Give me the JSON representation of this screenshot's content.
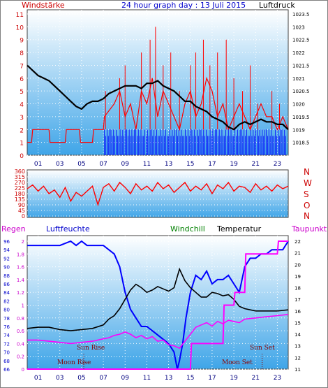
{
  "header": {
    "left_label": "Windstärke",
    "title": "24 hour graph day : 13 Juli 2015",
    "right_label": "Luftdruck"
  },
  "colors": {
    "outer_border": "#404040",
    "frame_bg": "#5eb6ea",
    "wind_red": "#ff0000",
    "wind_blue": "#0000ff",
    "pressure_black": "#000000",
    "humidity_blue": "#0000ff",
    "rain_magenta": "#ff00ff",
    "windchill_green": "#008000",
    "dewpoint_magenta": "#ff00ff",
    "axis_red": "#cc0000",
    "axis_blue": "#0000cc",
    "dark_red_text": "#8b0000"
  },
  "chart_data": [
    {
      "type": "line",
      "title": "24 hour graph day : 13 Juli 2015",
      "ylabel": "Windstärke",
      "y2label": "Luftdruck",
      "x_ticks": [
        "01",
        "03",
        "05",
        "07",
        "09",
        "11",
        "13",
        "15",
        "17",
        "19",
        "21",
        "23"
      ],
      "y_ticks": [
        "0",
        "1",
        "2",
        "3",
        "4",
        "5",
        "6",
        "7",
        "8",
        "9",
        "10",
        "11"
      ],
      "ylim": [
        0,
        11
      ],
      "y2_ticks": [
        "1018.5",
        "1019",
        "1019.5",
        "1020",
        "1020.5",
        "1021",
        "1021.5",
        "1022",
        "1022.5",
        "1023",
        "1023.5"
      ],
      "y2lim": [
        1018,
        1023.5
      ],
      "series": [
        {
          "role": "pressure",
          "color": "#000000",
          "x": [
            0,
            0.5,
            1,
            1.5,
            2,
            2.5,
            3,
            3.5,
            4,
            4.5,
            5,
            5.5,
            6,
            6.5,
            7,
            7.5,
            8,
            8.5,
            9,
            9.5,
            10,
            10.5,
            11,
            11.5,
            12,
            12.5,
            13,
            13.5,
            14,
            14.5,
            15,
            15.5,
            16,
            16.5,
            17,
            17.5,
            18,
            18.5,
            19,
            19.5,
            20,
            20.5,
            21,
            21.5,
            22,
            22.5,
            23,
            23.5,
            24
          ],
          "y": [
            1021.5,
            1021.3,
            1021.1,
            1021.0,
            1020.9,
            1020.7,
            1020.5,
            1020.3,
            1020.1,
            1019.9,
            1019.8,
            1020.0,
            1020.1,
            1020.1,
            1020.2,
            1020.4,
            1020.5,
            1020.6,
            1020.7,
            1020.7,
            1020.7,
            1020.6,
            1020.8,
            1020.8,
            1020.9,
            1020.7,
            1020.6,
            1020.5,
            1020.3,
            1020.1,
            1020.1,
            1019.9,
            1019.8,
            1019.7,
            1019.5,
            1019.4,
            1019.3,
            1019.1,
            1019.0,
            1019.2,
            1019.3,
            1019.2,
            1019.3,
            1019.4,
            1019.3,
            1019.3,
            1019.2,
            1019.2,
            1019.0
          ]
        },
        {
          "role": "wind_speed",
          "color": "#ff0000",
          "x": [
            0,
            0.4,
            0.5,
            2.0,
            2.1,
            3.5,
            3.6,
            4.8,
            4.9,
            6.0,
            6.1,
            7.0,
            7.1,
            8.0,
            8.5,
            9.0,
            9.5,
            10.0,
            10.5,
            11.0,
            11.5,
            12.0,
            12.5,
            13.0,
            13.5,
            14.0,
            14.5,
            15.0,
            15.5,
            16.0,
            16.5,
            17.0,
            17.5,
            18.0,
            18.5,
            19.0,
            19.5,
            20.0,
            20.5,
            21.0,
            21.5,
            22.0,
            22.5,
            23.0,
            23.5,
            24.0
          ],
          "y": [
            1,
            1,
            2,
            2,
            1,
            1,
            2,
            2,
            1,
            1,
            2,
            2,
            3,
            4,
            5,
            3,
            4,
            2,
            5,
            4,
            6,
            3,
            5,
            4,
            3,
            2,
            4,
            5,
            3,
            4,
            6,
            5,
            3,
            4,
            2,
            3,
            4,
            3,
            2,
            3,
            4,
            3,
            3,
            2,
            3,
            2
          ]
        },
        {
          "role": "gust",
          "color": "#ff0000",
          "x": [
            7.2,
            8.5,
            9.0,
            10.5,
            11.3,
            11.8,
            12.5,
            13.2,
            14.0,
            15.0,
            15.5,
            16.2,
            16.8,
            17.5,
            18.3,
            19.0,
            19.8,
            20.5,
            21.2,
            22.5,
            23.2
          ],
          "y": [
            5,
            6,
            7,
            8,
            9,
            10,
            7,
            8,
            5,
            7,
            8,
            9,
            7,
            8,
            9,
            6,
            5,
            7,
            4,
            5,
            4
          ]
        }
      ]
    },
    {
      "type": "line",
      "ylabel": "Wind direction",
      "x_ticks": [
        "01",
        "03",
        "05",
        "07",
        "09",
        "11",
        "13",
        "15",
        "17",
        "19",
        "21",
        "23"
      ],
      "y_ticks": [
        "0",
        "45",
        "90",
        "135",
        "180",
        "225",
        "270",
        "315",
        "360"
      ],
      "ylim": [
        0,
        360
      ],
      "compass_labels": [
        "N",
        "W",
        "S",
        "O",
        "N"
      ],
      "series": [
        {
          "role": "direction",
          "color": "#ff0000",
          "x": [
            0,
            0.5,
            1,
            1.5,
            2,
            2.5,
            3,
            3.5,
            4,
            4.5,
            5,
            5.5,
            6,
            6.5,
            7,
            7.5,
            8,
            8.5,
            9,
            9.5,
            10,
            10.5,
            11,
            11.5,
            12,
            12.5,
            13,
            13.5,
            14,
            14.5,
            15,
            15.5,
            16,
            16.5,
            17,
            17.5,
            18,
            18.5,
            19,
            19.5,
            20,
            20.5,
            21,
            21.5,
            22,
            22.5,
            23,
            23.5,
            24
          ],
          "y": [
            220,
            250,
            200,
            240,
            180,
            210,
            150,
            230,
            120,
            190,
            160,
            200,
            240,
            90,
            230,
            260,
            200,
            270,
            230,
            180,
            260,
            210,
            240,
            200,
            270,
            220,
            250,
            190,
            230,
            270,
            200,
            240,
            210,
            260,
            180,
            250,
            220,
            270,
            200,
            240,
            230,
            190,
            260,
            210,
            240,
            200,
            250,
            220,
            240
          ]
        }
      ]
    },
    {
      "type": "line",
      "legend": [
        "Regen",
        "Luftfeuchte",
        "Windchill",
        "Temperatur",
        "Taupunkt"
      ],
      "x_ticks": [
        "01",
        "03",
        "05",
        "07",
        "09",
        "11",
        "13",
        "15",
        "17",
        "19",
        "21",
        "23"
      ],
      "rain_ticks": [
        "0",
        "0.2",
        "0.4",
        "0.6",
        "0.8",
        "1",
        "1.2",
        "1.4",
        "1.6",
        "1.8",
        "2"
      ],
      "humidity_ticks": [
        "66",
        "68",
        "70",
        "72",
        "74",
        "76",
        "78",
        "80",
        "82",
        "84",
        "86",
        "88",
        "90",
        "92",
        "94",
        "96"
      ],
      "temp_ticks": [
        "11",
        "12",
        "13",
        "14",
        "15",
        "16",
        "17",
        "18",
        "19",
        "20",
        "21",
        "22"
      ],
      "annotations": [
        "Sun Rise",
        "Moon Rise",
        "Moon Set",
        "Sun Set"
      ],
      "series": [
        {
          "name": "Luftfeuchte",
          "color": "#0000ff",
          "x": [
            0,
            2,
            3,
            4,
            4.5,
            5,
            5.5,
            6,
            7,
            8,
            8.5,
            9,
            9.5,
            10,
            10.5,
            11,
            11.5,
            12,
            12.5,
            13,
            13.5,
            13.8,
            14,
            14.3,
            14.6,
            15,
            15.5,
            16,
            16.5,
            17,
            17.5,
            18,
            18.5,
            19,
            19.5,
            20,
            20.5,
            21,
            21.5,
            22,
            22.5,
            23,
            23.5,
            24
          ],
          "y": [
            95,
            95,
            95,
            96,
            95,
            96,
            95,
            95,
            95,
            93,
            90,
            84,
            80,
            78,
            76,
            76,
            75,
            74,
            73,
            72,
            70,
            66,
            68,
            72,
            78,
            84,
            88,
            87,
            89,
            86,
            87,
            87,
            88,
            86,
            84,
            90,
            92,
            92,
            93,
            93,
            94,
            94,
            94,
            96
          ]
        },
        {
          "name": "Temperatur",
          "color": "#000000",
          "x": [
            0,
            1,
            2,
            3,
            4,
            5,
            6,
            7,
            7.5,
            8,
            8.5,
            9,
            9.5,
            10,
            10.5,
            11,
            11.5,
            12,
            12.5,
            13,
            13.5,
            14,
            14.5,
            15,
            15.5,
            16,
            16.5,
            17,
            17.5,
            18,
            18.5,
            19,
            19.5,
            20,
            21,
            22,
            23,
            24
          ],
          "y": [
            14.5,
            14.6,
            14.6,
            14.4,
            14.3,
            14.4,
            14.5,
            14.8,
            15.3,
            15.6,
            16.2,
            17.0,
            17.8,
            18.3,
            18.0,
            17.6,
            17.8,
            18.1,
            17.9,
            17.7,
            18.0,
            19.6,
            18.6,
            18.0,
            17.6,
            17.2,
            17.2,
            17.6,
            17.5,
            17.3,
            17.4,
            17.0,
            16.4,
            16.2,
            16.0,
            16.0,
            16.0,
            16.1
          ]
        },
        {
          "name": "Windchill",
          "color": "#008000",
          "x": [
            0,
            24
          ],
          "y": [
            0,
            0
          ],
          "hidden": true
        },
        {
          "name": "Taupunkt",
          "color": "#ff00ff",
          "x": [
            0,
            1,
            2,
            3,
            4,
            5,
            6,
            7,
            7.5,
            8,
            8.5,
            9,
            9.5,
            10,
            10.5,
            11,
            11.5,
            12,
            12.5,
            13,
            13.5,
            14,
            14.5,
            15,
            15.5,
            16,
            16.5,
            17,
            17.5,
            18,
            18.5,
            19,
            19.5,
            20,
            21,
            22,
            23,
            24
          ],
          "y": [
            13.5,
            13.5,
            13.4,
            13.3,
            13.2,
            13.3,
            13.4,
            13.6,
            13.7,
            13.9,
            14.0,
            14.2,
            14.0,
            13.7,
            13.9,
            13.6,
            13.8,
            13.4,
            13.5,
            13.1,
            13.0,
            12.8,
            13.4,
            14.0,
            14.6,
            14.8,
            15.0,
            14.7,
            15.1,
            14.9,
            15.2,
            15.1,
            15.0,
            15.3,
            15.4,
            15.5,
            15.6,
            15.7
          ]
        },
        {
          "name": "Regen",
          "color": "#ff00ff",
          "x": [
            0,
            13.9,
            14,
            15,
            15.1,
            18,
            18.1,
            19,
            19.1,
            20,
            20.1,
            23,
            23.1,
            24
          ],
          "y": [
            0,
            0,
            0,
            0,
            0.4,
            0.4,
            1.0,
            1.0,
            1.2,
            1.2,
            1.8,
            1.8,
            2.0,
            2.0
          ]
        }
      ]
    }
  ],
  "bottom_header": {
    "regen": "Regen",
    "luftfeuchte": "Luftfeuchte",
    "windchill": "Windchill",
    "temperatur": "Temperatur",
    "taupunkt": "Taupunkt"
  }
}
